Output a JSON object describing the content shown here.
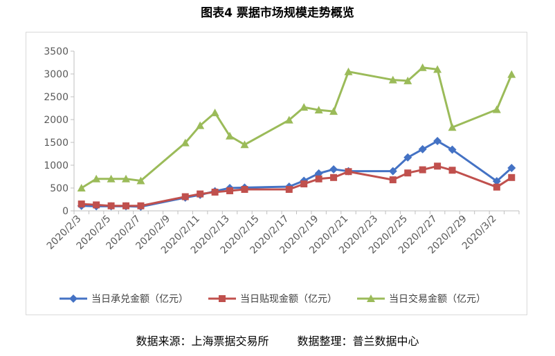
{
  "title": "图表4  票据市场规模走势概览",
  "footer": {
    "source": "数据来源：上海票据交易所",
    "compiler": "数据整理：普兰数据中心"
  },
  "chart_data": {
    "type": "line",
    "title": "图表4  票据市场规模走势概览",
    "xlabel": "",
    "ylabel": "",
    "ylim": [
      0,
      3500
    ],
    "yticks": [
      0,
      500,
      1000,
      1500,
      2000,
      2500,
      3000,
      3500
    ],
    "grid": false,
    "legend_position": "bottom",
    "x_tick_labels": [
      "2020/2/3",
      "2020/2/5",
      "2020/2/7",
      "2020/2/9",
      "2020/2/11",
      "2020/2/13",
      "2020/2/15",
      "2020/2/17",
      "2020/2/19",
      "2020/2/21",
      "2020/2/23",
      "2020/2/25",
      "2020/2/27",
      "2020/2/29",
      "2020/3/2"
    ],
    "x": [
      "2020/2/3",
      "2020/2/4",
      "2020/2/5",
      "2020/2/6",
      "2020/2/7",
      "2020/2/10",
      "2020/2/11",
      "2020/2/12",
      "2020/2/13",
      "2020/2/14",
      "2020/2/17",
      "2020/2/18",
      "2020/2/19",
      "2020/2/20",
      "2020/2/21",
      "2020/2/24",
      "2020/2/25",
      "2020/2/26",
      "2020/2/27",
      "2020/2/28",
      "2020/3/2",
      "2020/3/3"
    ],
    "series": [
      {
        "name": "当日承兑金额（亿元）",
        "color": "#4472c4",
        "marker": "diamond",
        "values": [
          110,
          100,
          100,
          100,
          90,
          290,
          350,
          430,
          500,
          510,
          530,
          660,
          820,
          910,
          870,
          870,
          1170,
          1350,
          1530,
          1340,
          650,
          940
        ]
      },
      {
        "name": "当日贴现金额（亿元）",
        "color": "#c0504d",
        "marker": "square",
        "values": [
          150,
          130,
          110,
          110,
          110,
          310,
          370,
          410,
          440,
          470,
          470,
          590,
          700,
          730,
          860,
          680,
          830,
          900,
          980,
          890,
          520,
          730
        ]
      },
      {
        "name": "当日交易金额（亿元）",
        "color": "#9bbb59",
        "marker": "triangle",
        "values": [
          500,
          700,
          700,
          700,
          660,
          1490,
          1870,
          2150,
          1640,
          1450,
          1990,
          2270,
          2210,
          2180,
          3050,
          2870,
          2850,
          3140,
          3100,
          1830,
          2220,
          2990
        ]
      }
    ]
  }
}
